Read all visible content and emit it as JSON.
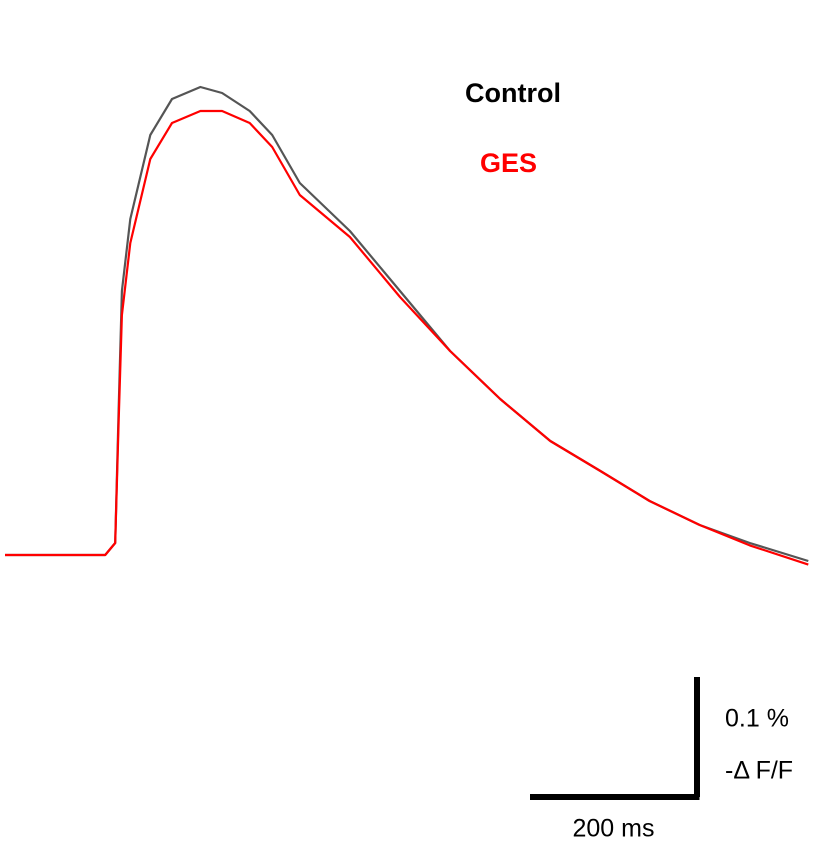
{
  "chart_data": {
    "type": "line",
    "x": [
      0,
      40,
      80,
      120,
      132,
      136,
      140,
      150,
      174,
      200,
      234,
      260,
      293,
      320,
      353,
      413,
      473,
      533,
      593,
      653,
      713,
      772,
      832,
      892,
      962
    ],
    "series": [
      {
        "name": "Control",
        "color": "#555555",
        "values": [
          0,
          0,
          0,
          0,
          0.01,
          0.12,
          0.22,
          0.28,
          0.35,
          0.38,
          0.39,
          0.385,
          0.37,
          0.35,
          0.31,
          0.27,
          0.22,
          0.17,
          0.13,
          0.095,
          0.07,
          0.045,
          0.025,
          0.01,
          -0.005
        ]
      },
      {
        "name": "GES",
        "color": "#ff0000",
        "values": [
          0,
          0,
          0,
          0,
          0.01,
          0.11,
          0.2,
          0.26,
          0.33,
          0.36,
          0.37,
          0.37,
          0.36,
          0.34,
          0.3,
          0.265,
          0.215,
          0.17,
          0.13,
          0.095,
          0.07,
          0.045,
          0.025,
          0.008,
          -0.008
        ]
      }
    ],
    "scale_bars": {
      "x": {
        "value": 200,
        "label": "200 ms"
      },
      "y": {
        "value": 0.1,
        "label": [
          "0.1 %",
          "-Δ F/F"
        ]
      }
    }
  }
}
